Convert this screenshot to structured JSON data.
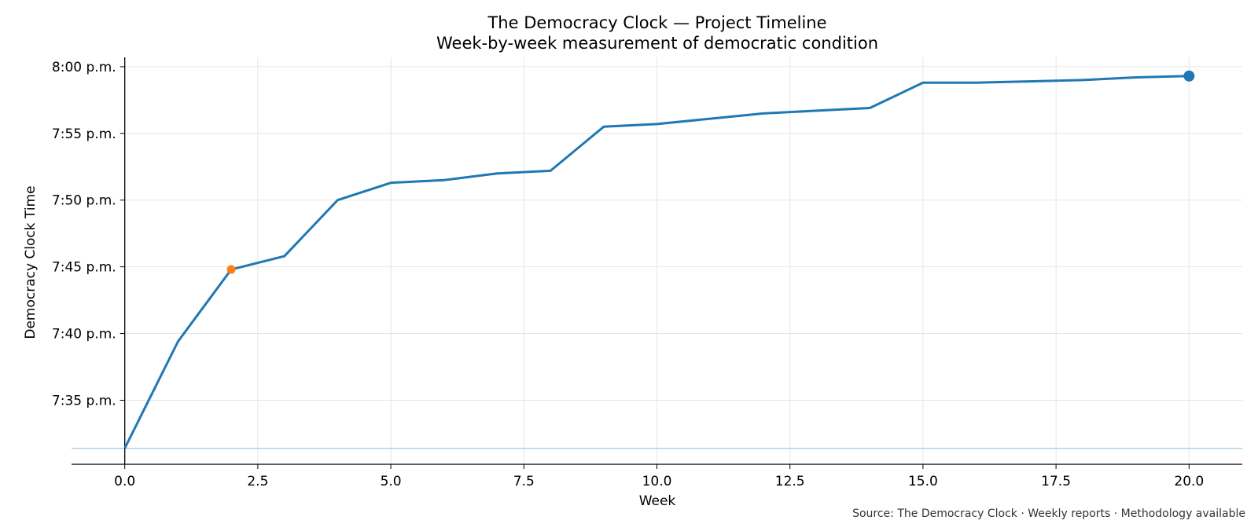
{
  "chart_data": {
    "type": "line",
    "title": "The Democracy Clock — Project Timeline",
    "subtitle": "Week-by-week measurement of democratic condition",
    "xlabel": "Week",
    "ylabel": "Democracy Clock Time",
    "xlim": [
      -1,
      21
    ],
    "x_ticks": [
      0.0,
      2.5,
      5.0,
      7.5,
      10.0,
      12.5,
      15.0,
      17.5,
      20.0
    ],
    "x_tick_labels": [
      "0.0",
      "2.5",
      "5.0",
      "7.5",
      "10.0",
      "12.5",
      "15.0",
      "17.5",
      "20.0"
    ],
    "ylim_minutes_past_7pm": [
      30.2,
      60.7
    ],
    "y_ticks_minutes_past_7pm": [
      35,
      40,
      45,
      50,
      55,
      60
    ],
    "y_tick_labels": [
      "7:35 p.m.",
      "7:40 p.m.",
      "7:45 p.m.",
      "7:50 p.m.",
      "7:55 p.m.",
      "8:00 p.m."
    ],
    "grid": true,
    "series": [
      {
        "x": [
          0,
          1,
          2,
          3,
          4,
          5,
          6,
          7,
          8,
          9,
          10,
          11,
          12,
          13,
          14,
          15,
          16,
          17,
          18,
          19,
          20
        ],
        "y_minutes_past_7pm": [
          31.4,
          39.4,
          44.8,
          45.8,
          50.0,
          51.3,
          51.5,
          52.0,
          52.2,
          55.5,
          55.7,
          56.1,
          56.5,
          56.7,
          56.9,
          58.8,
          58.8,
          58.9,
          59.0,
          59.2,
          59.3
        ],
        "color": "#1f77b4"
      }
    ],
    "baseline_minutes_past_7pm": 31.4,
    "baseline_color": "#9ecae1",
    "highlight_points": [
      {
        "x": 2,
        "y_minutes_past_7pm": 44.8,
        "color": "#ff7f0e"
      },
      {
        "x": 20,
        "y_minutes_past_7pm": 59.3,
        "color": "#1f77b4"
      }
    ],
    "source": "Source: The Democracy Clock · Weekly reports · Methodology available"
  }
}
